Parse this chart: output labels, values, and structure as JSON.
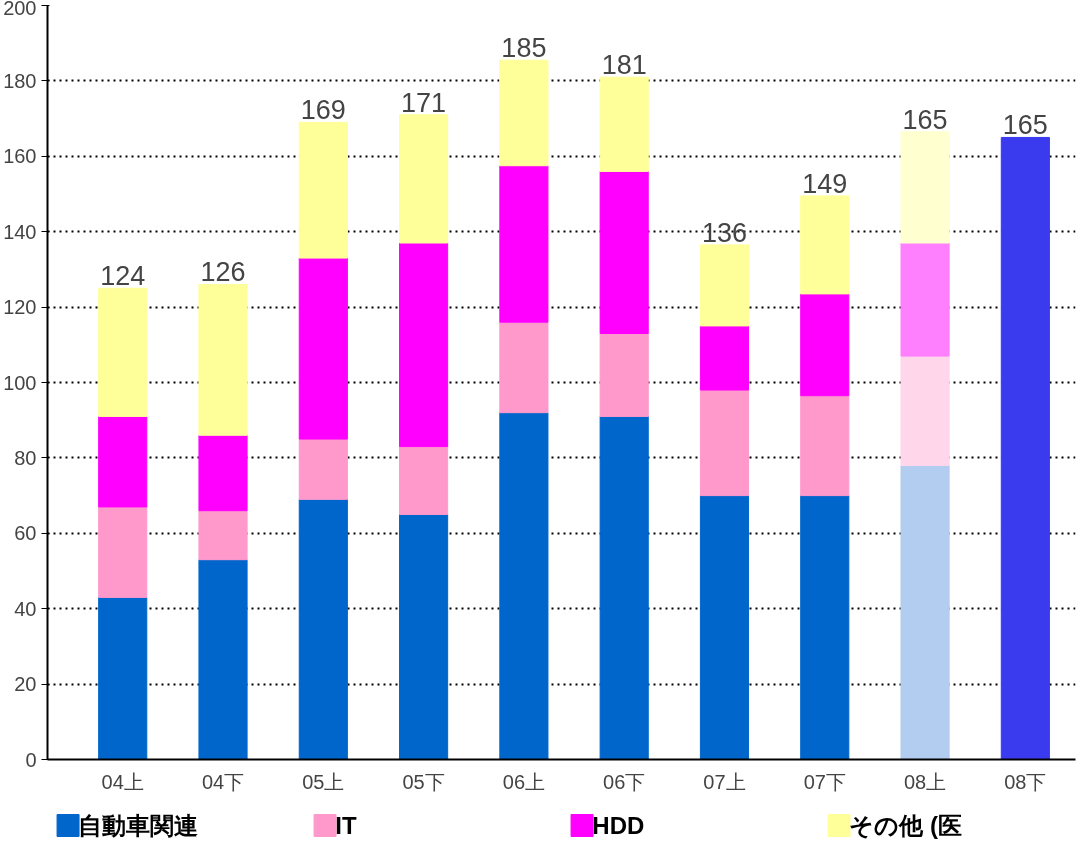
{
  "chart_data": {
    "type": "bar",
    "stacked": true,
    "categories": [
      "04上",
      "04下",
      "05上",
      "05下",
      "06上",
      "06下",
      "07上",
      "07下",
      "08上",
      "08下"
    ],
    "series": [
      {
        "name": "自動車関連",
        "color": "#0066cc",
        "colors": [
          "#0066cc",
          "#0066cc",
          "#0066cc",
          "#0066cc",
          "#0066cc",
          "#0066cc",
          "#0066cc",
          "#0066cc",
          "#b3cdf0",
          "#3a3aee"
        ],
        "values": [
          43,
          53,
          69,
          65,
          92,
          91,
          70,
          70,
          78,
          165
        ]
      },
      {
        "name": "IT",
        "color": "#ff99cc",
        "colors": [
          "#ff99cc",
          "#ff99cc",
          "#ff99cc",
          "#ff99cc",
          "#ff99cc",
          "#ff99cc",
          "#ff99cc",
          "#ff99cc",
          "#ffd6ea",
          null
        ],
        "values": [
          24,
          13,
          16,
          18,
          24,
          22,
          28,
          26.5,
          29,
          null
        ]
      },
      {
        "name": "HDD",
        "color": "#ff00ff",
        "colors": [
          "#ff00ff",
          "#ff00ff",
          "#ff00ff",
          "#ff00ff",
          "#ff00ff",
          "#ff00ff",
          "#ff00ff",
          "#ff00ff",
          "#ff80ff",
          null
        ],
        "values": [
          24,
          20,
          48,
          54,
          41.5,
          43,
          17,
          27,
          30,
          null
        ]
      },
      {
        "name": "その他 (医",
        "color": "#ffff99",
        "colors": [
          "#ffff99",
          "#ffff99",
          "#ffff99",
          "#ffff99",
          "#ffff99",
          "#ffff99",
          "#ffff99",
          "#ffff99",
          "#ffffd0",
          null
        ],
        "values": [
          34,
          40,
          36,
          34,
          28,
          25,
          21.5,
          26,
          29.5,
          null
        ]
      }
    ],
    "totals": [
      "124",
      "126",
      "169",
      "171",
      "185",
      "181",
      "136",
      "149",
      "165",
      "165"
    ],
    "ylim": [
      0,
      200
    ],
    "yticks": [
      0,
      20,
      40,
      60,
      80,
      100,
      120,
      140,
      160,
      180,
      200
    ],
    "grid": "y",
    "legend": "bottom"
  }
}
